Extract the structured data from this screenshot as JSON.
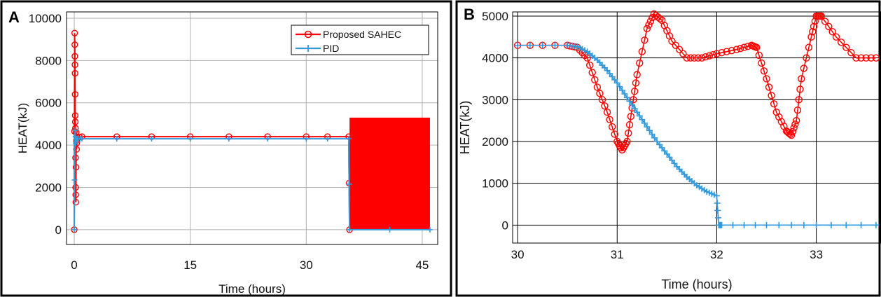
{
  "chart_data": [
    {
      "type": "line",
      "panel_letter": "A",
      "xlabel": "Time (hours)",
      "ylabel": "HEAT(kJ)",
      "xlim": [
        -1,
        47
      ],
      "ylim": [
        -700,
        10300
      ],
      "xticks": [
        0,
        15,
        30,
        45
      ],
      "yticks": [
        0,
        2000,
        4000,
        6000,
        8000,
        10000
      ],
      "grid": true,
      "legend_position": "top-right",
      "legend": [
        "Proposed SAHEC",
        "PID"
      ],
      "series": [
        {
          "name": "Proposed SAHEC",
          "color": "#ff0000",
          "marker": "circle",
          "x": [
            0,
            0.05,
            0.08,
            0.1,
            0.12,
            0.15,
            0.18,
            0.2,
            0.25,
            0.3,
            0.35,
            0.4,
            1,
            10,
            20,
            30,
            35.5,
            35.6
          ],
          "y": [
            0,
            9300,
            8200,
            7400,
            5400,
            4800,
            2000,
            1300,
            4600,
            3800,
            4400,
            4350,
            4400,
            4400,
            4400,
            4400,
            4400,
            0
          ],
          "oscillation_band": {
            "x_start": 35.6,
            "x_end": 46,
            "y_low": 0,
            "y_high": 5300
          }
        },
        {
          "name": "PID",
          "color": "#3399dd",
          "marker": "plus",
          "x": [
            0,
            0.1,
            0.2,
            0.3,
            0.5,
            1,
            10,
            20,
            30,
            35.5,
            35.6,
            46
          ],
          "y": [
            0,
            4700,
            4100,
            4300,
            4300,
            4300,
            4300,
            4300,
            4300,
            4300,
            0,
            0
          ]
        }
      ]
    },
    {
      "type": "line",
      "panel_letter": "B",
      "xlabel": "Time (hours)",
      "ylabel": "HEAT(kJ)",
      "xlim": [
        29.95,
        33.65
      ],
      "ylim": [
        -430,
        5100
      ],
      "xticks": [
        30,
        31,
        32,
        33
      ],
      "yticks": [
        0,
        1000,
        2000,
        3000,
        4000,
        5000
      ],
      "grid": true,
      "series": [
        {
          "name": "Proposed SAHEC",
          "color": "#ff0000",
          "marker": "circle",
          "x": [
            30,
            30.5,
            30.6,
            30.7,
            30.8,
            30.9,
            31.0,
            31.05,
            31.1,
            31.15,
            31.2,
            31.3,
            31.37,
            31.45,
            31.55,
            31.7,
            31.85,
            32.0,
            32.2,
            32.35,
            32.4,
            32.5,
            32.6,
            32.7,
            32.75,
            32.8,
            32.85,
            32.95,
            33.0,
            33.05,
            33.2,
            33.4,
            33.6
          ],
          "y": [
            4300,
            4300,
            4250,
            4000,
            3300,
            2700,
            2000,
            1800,
            2000,
            2800,
            3600,
            4700,
            5050,
            4900,
            4400,
            4000,
            4000,
            4100,
            4200,
            4300,
            4250,
            3500,
            2700,
            2250,
            2150,
            2500,
            3500,
            4500,
            5000,
            5000,
            4500,
            4000,
            4000
          ]
        },
        {
          "name": "PID",
          "color": "#3399dd",
          "marker": "plus",
          "x": [
            30,
            30.5,
            30.6,
            30.7,
            30.8,
            30.9,
            31.0,
            31.1,
            31.2,
            31.3,
            31.4,
            31.5,
            31.6,
            31.7,
            31.8,
            31.9,
            32.0,
            32.02,
            32.05,
            32.5,
            33.0,
            33.6
          ],
          "y": [
            4300,
            4300,
            4270,
            4150,
            3950,
            3700,
            3400,
            3050,
            2700,
            2350,
            2000,
            1700,
            1400,
            1150,
            950,
            800,
            700,
            0,
            0,
            0,
            0,
            0
          ]
        }
      ]
    }
  ]
}
